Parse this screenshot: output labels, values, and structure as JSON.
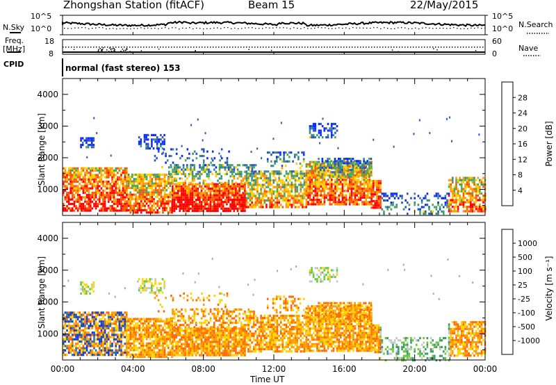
{
  "header": {
    "station": "Zhongshan Station (fitACF)",
    "beam": "Beam 15",
    "date": "22/May/2015"
  },
  "noise_panel": {
    "left_label": "N.Sky",
    "right_label": "N.Search",
    "y_top_tick": "10^5",
    "y_bottom_tick": "10^0",
    "right_top_tick": "10^5",
    "right_bottom_tick": "10^0"
  },
  "freq_panel": {
    "left_label_line1": "Freq.",
    "left_label_line2": "[MHz]",
    "right_label": "Nave",
    "y_top_tick": "18",
    "y_bottom_tick": "8",
    "right_top_tick": "60",
    "right_bottom_tick": "0"
  },
  "cpid": {
    "label": "CPID",
    "value": "normal (fast stereo) 153"
  },
  "chart_data": [
    {
      "type": "heatmap",
      "panel": "power",
      "ylabel": "Slant Range [km]",
      "xlabel": "",
      "x_ticks": [
        "00:00",
        "04:00",
        "08:00",
        "12:00",
        "16:00",
        "20:00",
        "00:00"
      ],
      "y_ticks": [
        1000,
        2000,
        3000,
        4000
      ],
      "ylim": [
        180,
        4500
      ],
      "colorbar_label": "Power [dB]",
      "colorbar_ticks": [
        4,
        8,
        12,
        16,
        20,
        24,
        28
      ],
      "colorbar_range": [
        0,
        32
      ],
      "colors": [
        "#0a2bff",
        "#2a56c4",
        "#3d8a8a",
        "#4aa85a",
        "#ffd000",
        "#ff9a00",
        "#ff5500",
        "#ff0000"
      ]
    },
    {
      "type": "heatmap",
      "panel": "velocity",
      "ylabel": "Slant Range [km]",
      "xlabel": "Time UT",
      "x_ticks": [
        "00:00",
        "04:00",
        "08:00",
        "12:00",
        "16:00",
        "20:00",
        "00:00"
      ],
      "y_ticks": [
        1000,
        2000,
        3000,
        4000
      ],
      "ylim": [
        180,
        4500
      ],
      "colorbar_label": "Velocity [m s⁻¹]",
      "colorbar_ticks": [
        "1000",
        "500",
        "100",
        "25",
        "-25",
        "-100",
        "-500",
        "-1000"
      ],
      "colors": [
        "#1a3fbf",
        "#2f6e9e",
        "#3e9a6e",
        "#66cc33",
        "#c8c8c8",
        "#ffd400",
        "#ff9a00",
        "#ff6a00",
        "#ff0000"
      ]
    }
  ]
}
